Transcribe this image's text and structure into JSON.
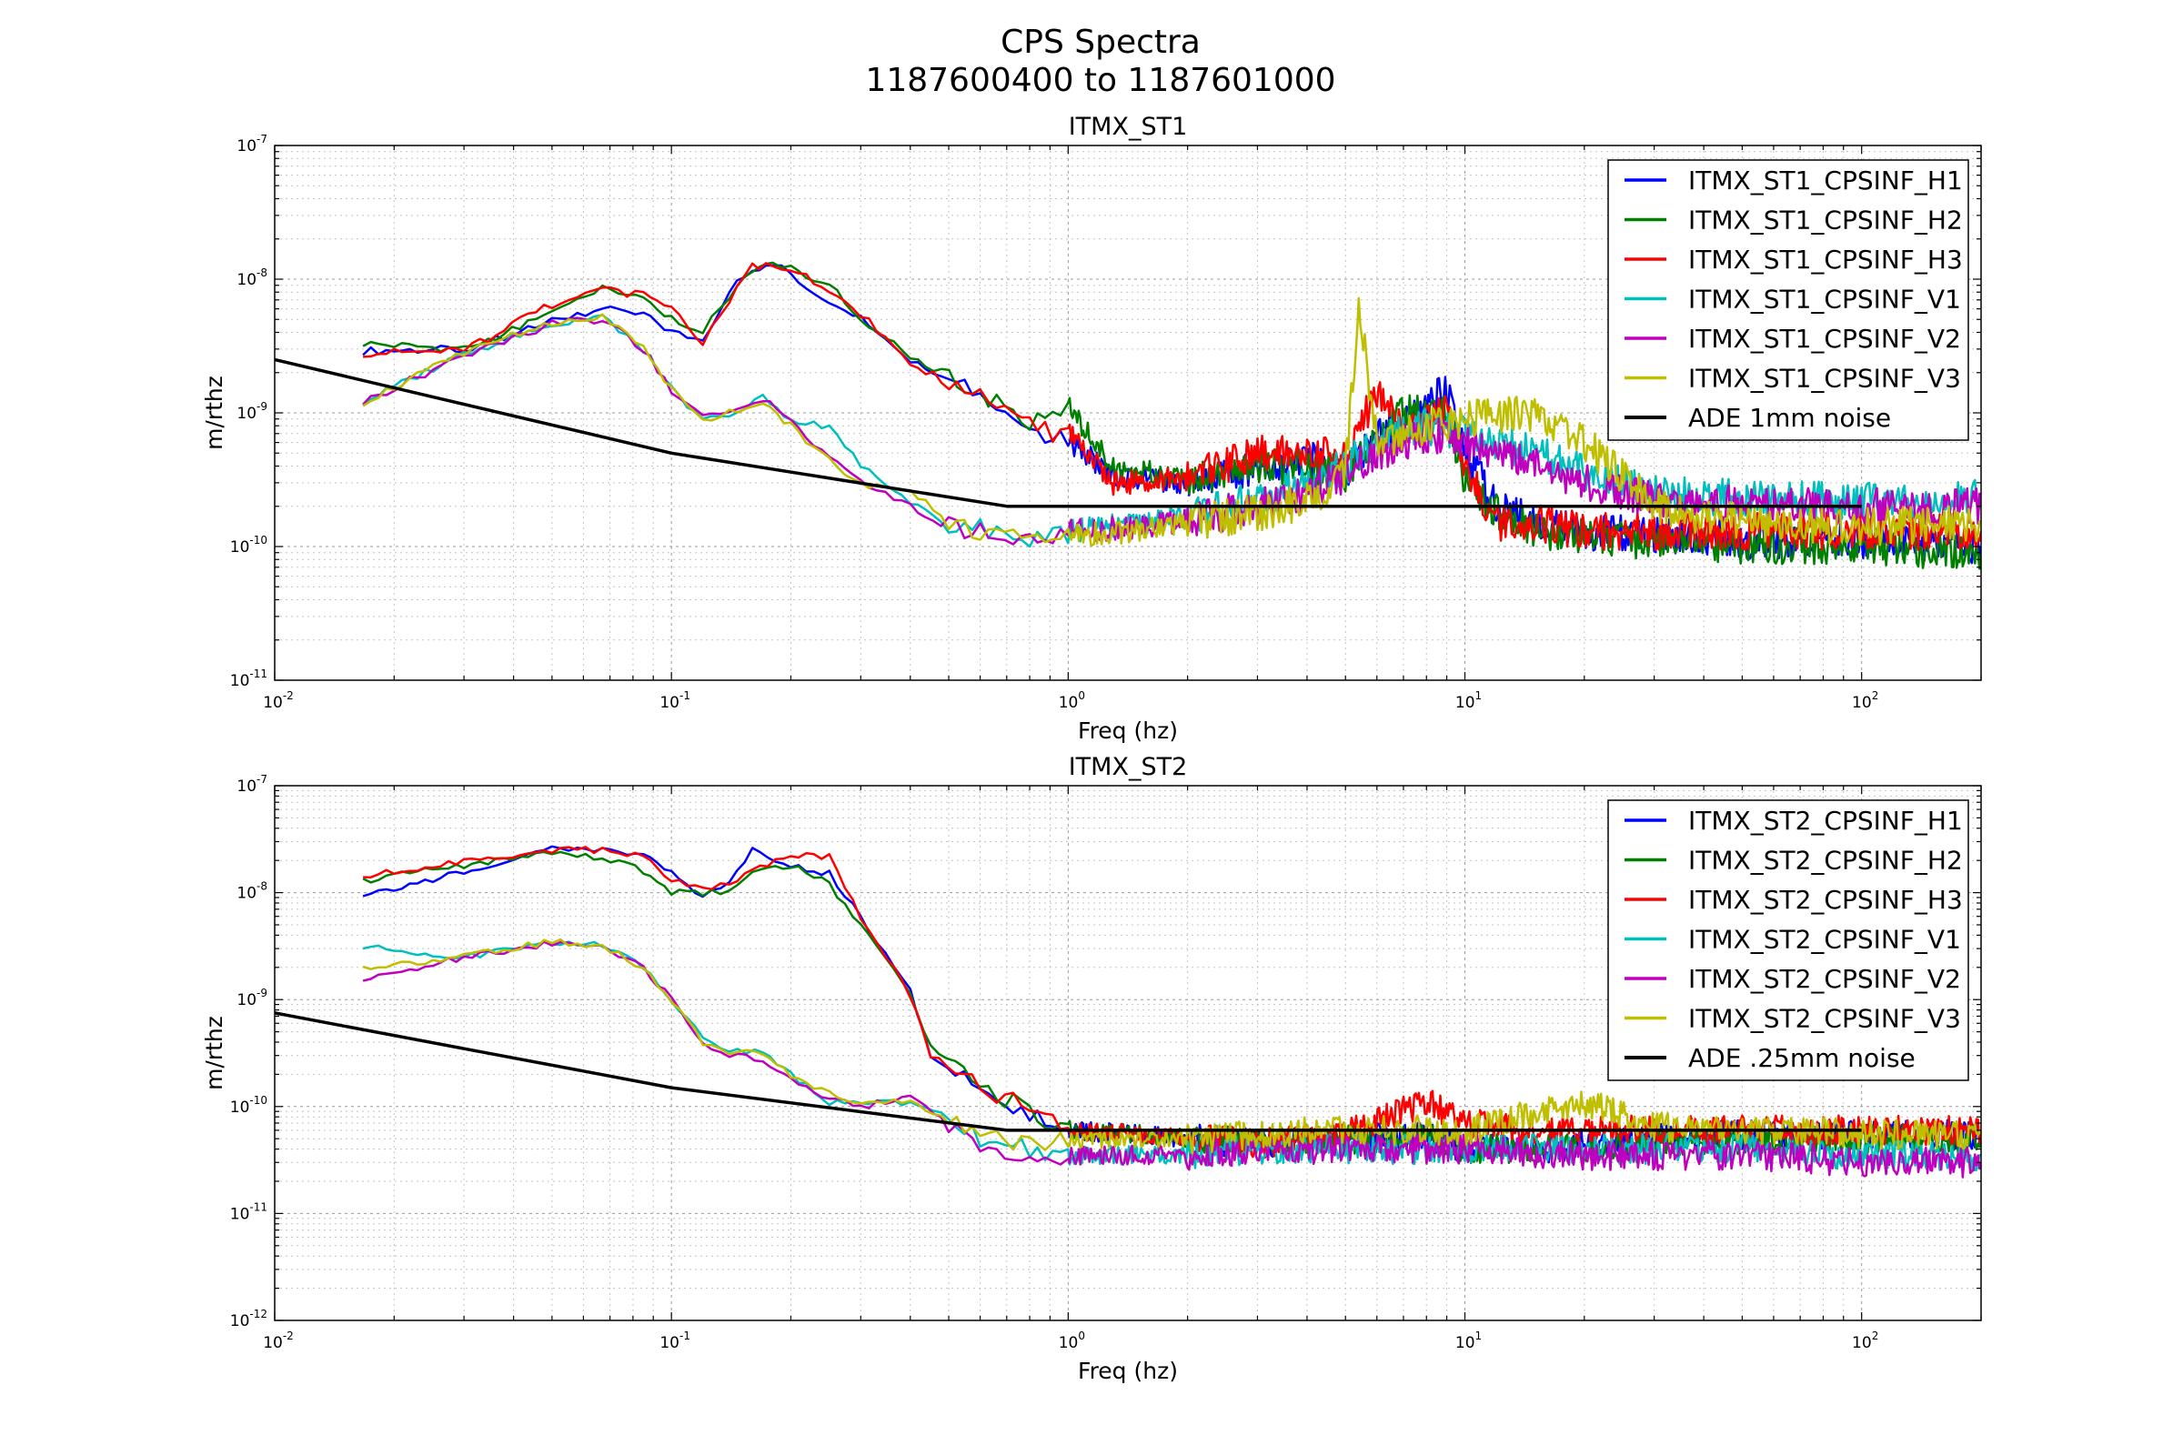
{
  "figure": {
    "title": "CPS Spectra",
    "subtitle": "1187600400 to 1187601000"
  },
  "chart_data": [
    {
      "type": "line",
      "title": "ITMX_ST1",
      "xlabel": "Freq (hz)",
      "ylabel": "m/rthz",
      "xscale": "log",
      "yscale": "log",
      "xlim": [
        0.01,
        200
      ],
      "ylim": [
        1e-11,
        1e-07
      ],
      "xticks": [
        0.01,
        0.1,
        1,
        10,
        100
      ],
      "xtick_exponents": [
        "-2",
        "-1",
        "0",
        "1",
        "2"
      ],
      "yticks": [
        1e-11,
        1e-10,
        1e-09,
        1e-08,
        1e-07
      ],
      "ytick_exponents": [
        "-11",
        "-10",
        "-9",
        "-8",
        "-7"
      ],
      "tick_base": "10",
      "grid": true,
      "legend_position": "top-right",
      "series": [
        {
          "name": "ITMX_ST1_CPSINF_H1",
          "color": "#0000ff",
          "x": [
            0.0167,
            0.03,
            0.05,
            0.067,
            0.085,
            0.1,
            0.12,
            0.14,
            0.16,
            0.18,
            0.2,
            0.25,
            0.3,
            0.4,
            0.6,
            0.8,
            1.0,
            1.3,
            2.0,
            3.0,
            4.0,
            5.0,
            6.0,
            7.0,
            9.0,
            10.0,
            12.0,
            15.0,
            20.0,
            30.0,
            50.0,
            100.0,
            200.0
          ],
          "y": [
            2.9e-09,
            3e-09,
            4.8e-09,
            6e-09,
            5.5e-09,
            4e-09,
            3.5e-09,
            8e-09,
            1.2e-08,
            1.3e-08,
            1.1e-08,
            6.5e-09,
            5e-09,
            2.5e-09,
            1.4e-09,
            7e-10,
            6e-10,
            3.5e-10,
            3e-10,
            4e-10,
            4.5e-10,
            3.5e-10,
            7e-10,
            8e-10,
            1.5e-09,
            5e-10,
            2e-10,
            1.5e-10,
            1.3e-10,
            1.2e-10,
            1.1e-10,
            1.1e-10,
            1e-10
          ]
        },
        {
          "name": "ITMX_ST1_CPSINF_H2",
          "color": "#008000",
          "x": [
            0.0167,
            0.03,
            0.05,
            0.067,
            0.085,
            0.1,
            0.12,
            0.14,
            0.16,
            0.18,
            0.2,
            0.25,
            0.3,
            0.4,
            0.6,
            0.8,
            1.0,
            1.3,
            2.0,
            3.0,
            4.0,
            5.0,
            6.0,
            7.0,
            9.0,
            10.0,
            12.0,
            15.0,
            20.0,
            30.0,
            50.0,
            100.0,
            200.0
          ],
          "y": [
            3.3e-09,
            3e-09,
            5.5e-09,
            8.5e-09,
            7.5e-09,
            5e-09,
            4.2e-09,
            7e-09,
            1.2e-08,
            1.4e-08,
            1.2e-08,
            9e-09,
            5e-09,
            2.6e-09,
            1.5e-09,
            8e-10,
            1.1e-09,
            3.8e-10,
            3.3e-10,
            4e-10,
            4e-10,
            3.5e-10,
            6e-10,
            1e-09,
            1e-09,
            3e-10,
            1.8e-10,
            1.3e-10,
            1.2e-10,
            1.1e-10,
            1e-10,
            1e-10,
            9e-11
          ]
        },
        {
          "name": "ITMX_ST1_CPSINF_H3",
          "color": "#ff0000",
          "x": [
            0.0167,
            0.03,
            0.05,
            0.067,
            0.085,
            0.1,
            0.12,
            0.14,
            0.16,
            0.18,
            0.2,
            0.25,
            0.3,
            0.4,
            0.6,
            0.8,
            1.0,
            1.3,
            2.0,
            3.0,
            4.0,
            5.0,
            6.0,
            7.0,
            9.0,
            10.0,
            12.0,
            15.0,
            20.0,
            30.0,
            50.0,
            100.0,
            200.0
          ],
          "y": [
            2.8e-09,
            2.9e-09,
            6.5e-09,
            8.2e-09,
            7.7e-09,
            6e-09,
            3.2e-09,
            7e-09,
            1.3e-08,
            1.2e-08,
            1.2e-08,
            8.5e-09,
            5.5e-09,
            2.3e-09,
            1.3e-09,
            8e-10,
            7e-10,
            3e-10,
            3.2e-10,
            5e-10,
            5e-10,
            4.5e-10,
            1.5e-09,
            7e-10,
            1e-09,
            4e-10,
            1.5e-10,
            1.5e-10,
            1.3e-10,
            1.3e-10,
            1.3e-10,
            1.3e-10,
            1.3e-10
          ]
        },
        {
          "name": "ITMX_ST1_CPSINF_V1",
          "color": "#00bfbf",
          "x": [
            0.0167,
            0.03,
            0.05,
            0.067,
            0.085,
            0.1,
            0.12,
            0.14,
            0.17,
            0.2,
            0.25,
            0.3,
            0.4,
            0.5,
            0.6,
            0.8,
            1.0,
            1.5,
            2.0,
            3.0,
            4.0,
            5.0,
            6.0,
            8.0,
            10.0,
            15.0,
            20.0,
            30.0,
            50.0,
            100.0,
            200.0
          ],
          "y": [
            1.2e-09,
            2.8e-09,
            4.5e-09,
            5.2e-09,
            3e-09,
            1.5e-09,
            9e-10,
            1e-09,
            1.3e-09,
            9e-10,
            8e-10,
            4e-10,
            2.2e-10,
            1.5e-10,
            1.4e-10,
            1.2e-10,
            1.3e-10,
            1.5e-10,
            1.7e-10,
            2.2e-10,
            3e-10,
            4e-10,
            6e-10,
            8e-10,
            7e-10,
            5e-10,
            3.5e-10,
            2.5e-10,
            2.3e-10,
            2.2e-10,
            2.3e-10
          ]
        },
        {
          "name": "ITMX_ST1_CPSINF_V2",
          "color": "#bf00bf",
          "x": [
            0.0167,
            0.03,
            0.05,
            0.067,
            0.085,
            0.1,
            0.12,
            0.14,
            0.17,
            0.2,
            0.25,
            0.3,
            0.4,
            0.5,
            0.6,
            0.8,
            1.0,
            1.5,
            2.0,
            3.0,
            4.0,
            5.0,
            6.0,
            8.0,
            10.0,
            15.0,
            20.0,
            30.0,
            50.0,
            100.0,
            200.0
          ],
          "y": [
            1.2e-09,
            2.7e-09,
            4.6e-09,
            5e-09,
            3e-09,
            1.5e-09,
            9e-10,
            1e-09,
            1.3e-09,
            8.5e-10,
            4.5e-10,
            3e-10,
            2e-10,
            1.4e-10,
            1.3e-10,
            1.2e-10,
            1.3e-10,
            1.4e-10,
            1.6e-10,
            2e-10,
            2.5e-10,
            3.5e-10,
            5e-10,
            7e-10,
            6e-10,
            4e-10,
            3e-10,
            2.2e-10,
            2.1e-10,
            2e-10,
            2e-10
          ]
        },
        {
          "name": "ITMX_ST1_CPSINF_V3",
          "color": "#bfbf00",
          "x": [
            0.0167,
            0.03,
            0.05,
            0.067,
            0.085,
            0.1,
            0.12,
            0.14,
            0.17,
            0.2,
            0.25,
            0.3,
            0.4,
            0.5,
            0.6,
            0.8,
            1.0,
            1.5,
            2.0,
            3.0,
            4.0,
            5.0,
            5.4,
            6.0,
            8.0,
            10.0,
            15.0,
            20.0,
            30.0,
            50.0,
            100.0,
            200.0
          ],
          "y": [
            1.2e-09,
            2.8e-09,
            4.8e-09,
            5.2e-09,
            3e-09,
            1.5e-09,
            9e-10,
            1e-09,
            1.2e-09,
            8e-10,
            4.5e-10,
            3e-10,
            2.5e-10,
            1.6e-10,
            1.3e-10,
            1.1e-10,
            1.2e-10,
            1.3e-10,
            1.5e-10,
            1.8e-10,
            2.2e-10,
            3.5e-10,
            6.5e-09,
            6e-10,
            8e-10,
            9e-10,
            1e-09,
            6e-10,
            2e-10,
            1.5e-10,
            1.4e-10,
            1.5e-10
          ]
        },
        {
          "name": "ADE 1mm noise",
          "color": "#000000",
          "x": [
            0.01,
            0.1,
            0.7,
            100.0
          ],
          "y": [
            2.5e-09,
            5e-10,
            2e-10,
            2e-10
          ]
        }
      ]
    },
    {
      "type": "line",
      "title": "ITMX_ST2",
      "xlabel": "Freq (hz)",
      "ylabel": "m/rthz",
      "xscale": "log",
      "yscale": "log",
      "xlim": [
        0.01,
        200
      ],
      "ylim": [
        1e-12,
        1e-07
      ],
      "xticks": [
        0.01,
        0.1,
        1,
        10,
        100
      ],
      "xtick_exponents": [
        "-2",
        "-1",
        "0",
        "1",
        "2"
      ],
      "yticks": [
        1e-12,
        1e-11,
        1e-10,
        1e-09,
        1e-08,
        1e-07
      ],
      "ytick_exponents": [
        "-12",
        "-11",
        "-10",
        "-9",
        "-8",
        "-7"
      ],
      "tick_base": "10",
      "grid": true,
      "legend_position": "top-right",
      "series": [
        {
          "name": "ITMX_ST2_CPSINF_H1",
          "color": "#0000ff",
          "x": [
            0.0167,
            0.03,
            0.05,
            0.067,
            0.085,
            0.1,
            0.12,
            0.14,
            0.16,
            0.2,
            0.25,
            0.3,
            0.4,
            0.45,
            0.6,
            0.8,
            1.0,
            1.5,
            2.0,
            3.0,
            5.0,
            8.0,
            10.0,
            15.0,
            20.0,
            30.0,
            50.0,
            100.0,
            200.0
          ],
          "y": [
            9e-09,
            1.6e-08,
            2.6e-08,
            2.5e-08,
            2.2e-08,
            1.5e-08,
            9e-09,
            1.3e-08,
            2.5e-08,
            1.8e-08,
            1.5e-08,
            6e-09,
            1.2e-09,
            3e-10,
            1.5e-10,
            8e-11,
            6e-11,
            5.5e-11,
            5e-11,
            4.5e-11,
            5e-11,
            5.5e-11,
            4e-11,
            4e-11,
            4.5e-11,
            5e-11,
            5.5e-11,
            5.5e-11,
            5.5e-11
          ]
        },
        {
          "name": "ITMX_ST2_CPSINF_H2",
          "color": "#008000",
          "x": [
            0.0167,
            0.03,
            0.05,
            0.067,
            0.085,
            0.1,
            0.12,
            0.14,
            0.16,
            0.2,
            0.25,
            0.3,
            0.4,
            0.45,
            0.6,
            0.8,
            1.0,
            1.5,
            2.0,
            3.0,
            5.0,
            8.0,
            10.0,
            15.0,
            20.0,
            30.0,
            50.0,
            100.0,
            200.0
          ],
          "y": [
            1.3e-08,
            1.8e-08,
            2.3e-08,
            2.1e-08,
            1.6e-08,
            1e-08,
            1e-08,
            1e-08,
            1.5e-08,
            1.8e-08,
            1.2e-08,
            5e-09,
            1.1e-09,
            3.5e-10,
            1.6e-10,
            9e-11,
            6e-11,
            5.5e-11,
            5e-11,
            4.5e-11,
            5e-11,
            5e-11,
            4e-11,
            4e-11,
            4e-11,
            4.5e-11,
            5e-11,
            5e-11,
            5e-11
          ]
        },
        {
          "name": "ITMX_ST2_CPSINF_H3",
          "color": "#ff0000",
          "x": [
            0.0167,
            0.03,
            0.05,
            0.067,
            0.085,
            0.1,
            0.12,
            0.14,
            0.16,
            0.2,
            0.25,
            0.3,
            0.4,
            0.45,
            0.6,
            0.8,
            1.0,
            1.5,
            2.0,
            3.0,
            5.0,
            8.0,
            10.0,
            15.0,
            20.0,
            30.0,
            50.0,
            100.0,
            200.0
          ],
          "y": [
            1.4e-08,
            2e-08,
            2.5e-08,
            2.5e-08,
            2.2e-08,
            1.3e-08,
            1.1e-08,
            1.2e-08,
            1.7e-08,
            2.2e-08,
            2.2e-08,
            6e-09,
            1.1e-09,
            3e-10,
            1.5e-10,
            1e-10,
            6e-11,
            5.5e-11,
            5e-11,
            4.5e-11,
            5.5e-11,
            1.1e-10,
            7e-11,
            6e-11,
            6e-11,
            6e-11,
            6e-11,
            6e-11,
            6e-11
          ]
        },
        {
          "name": "ITMX_ST2_CPSINF_V1",
          "color": "#00bfbf",
          "x": [
            0.0167,
            0.03,
            0.05,
            0.067,
            0.085,
            0.1,
            0.12,
            0.14,
            0.17,
            0.2,
            0.25,
            0.3,
            0.4,
            0.5,
            0.6,
            0.8,
            1.0,
            1.5,
            2.0,
            3.0,
            5.0,
            10.0,
            20.0,
            50.0,
            100.0,
            200.0
          ],
          "y": [
            3.1e-09,
            2.5e-09,
            3.5e-09,
            3.2e-09,
            2e-09,
            1e-09,
            4.5e-10,
            3.3e-10,
            3.3e-10,
            2e-10,
            1.1e-10,
            1.1e-10,
            1.1e-10,
            8e-11,
            5e-11,
            4e-11,
            3.5e-11,
            3.5e-11,
            3.5e-11,
            4e-11,
            4e-11,
            4e-11,
            4e-11,
            4e-11,
            3.5e-11,
            3.5e-11
          ]
        },
        {
          "name": "ITMX_ST2_CPSINF_V2",
          "color": "#bf00bf",
          "x": [
            0.0167,
            0.03,
            0.05,
            0.067,
            0.085,
            0.1,
            0.12,
            0.14,
            0.17,
            0.2,
            0.25,
            0.3,
            0.4,
            0.5,
            0.6,
            0.8,
            1.0,
            1.5,
            2.0,
            3.0,
            5.0,
            10.0,
            20.0,
            50.0,
            100.0,
            200.0
          ],
          "y": [
            1.5e-09,
            2.5e-09,
            3.4e-09,
            3e-09,
            2e-09,
            1e-09,
            4e-10,
            3e-10,
            2.8e-10,
            1.8e-10,
            1.2e-10,
            1e-10,
            1.2e-10,
            7e-11,
            4e-11,
            3.5e-11,
            3.5e-11,
            3.5e-11,
            3.5e-11,
            4e-11,
            4e-11,
            4e-11,
            3.5e-11,
            3.5e-11,
            3e-11,
            3e-11
          ]
        },
        {
          "name": "ITMX_ST2_CPSINF_V3",
          "color": "#bfbf00",
          "x": [
            0.0167,
            0.03,
            0.05,
            0.067,
            0.085,
            0.1,
            0.12,
            0.14,
            0.17,
            0.2,
            0.25,
            0.3,
            0.4,
            0.5,
            0.6,
            0.8,
            1.0,
            1.5,
            2.0,
            3.0,
            5.0,
            10.0,
            20.0,
            30.0,
            50.0,
            100.0,
            200.0
          ],
          "y": [
            2e-09,
            2.5e-09,
            3.5e-09,
            3.2e-09,
            2e-09,
            1e-09,
            4e-10,
            3.2e-10,
            3.2e-10,
            2e-10,
            1.3e-10,
            1.1e-10,
            1.1e-10,
            8e-11,
            5e-11,
            4.5e-11,
            5e-11,
            5e-11,
            5e-11,
            5.5e-11,
            6e-11,
            6e-11,
            1.1e-10,
            6.5e-11,
            6e-11,
            5.5e-11,
            5.5e-11
          ]
        },
        {
          "name": "ADE .25mm noise",
          "color": "#000000",
          "x": [
            0.01,
            0.1,
            0.7,
            100.0
          ],
          "y": [
            7.5e-10,
            1.5e-10,
            6e-11,
            6e-11
          ]
        }
      ]
    }
  ]
}
